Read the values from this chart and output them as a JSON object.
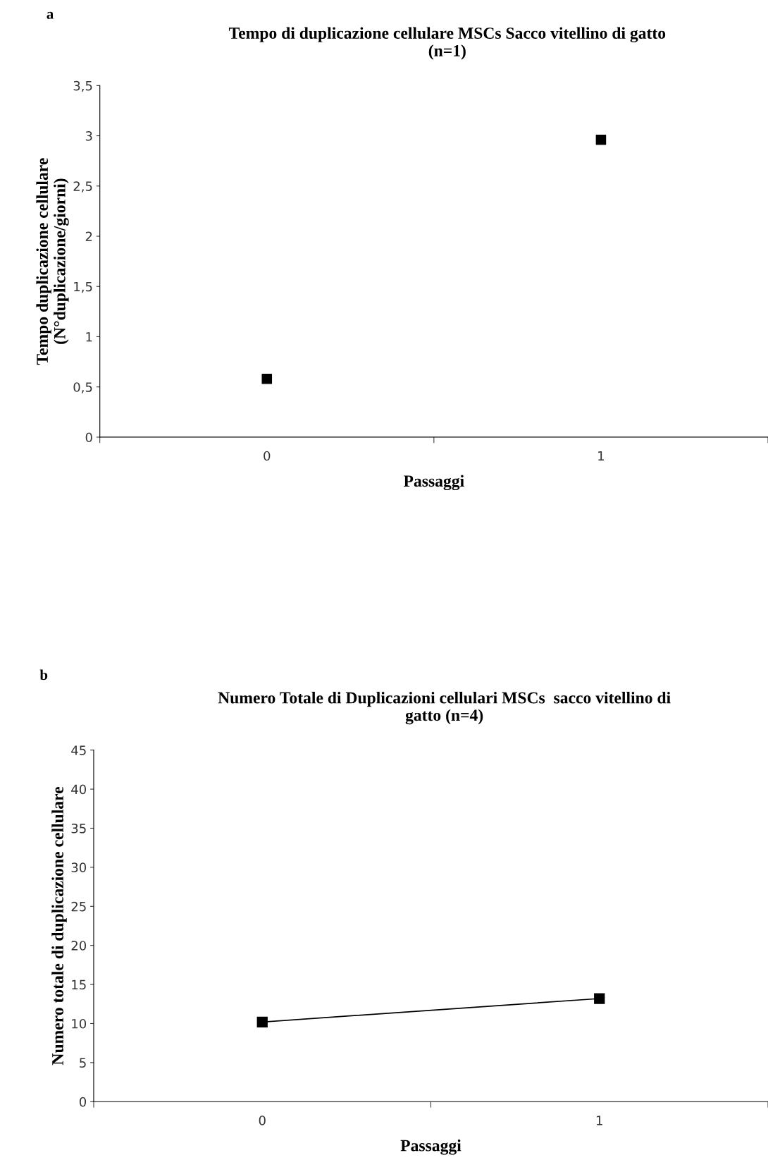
{
  "chart_data": [
    {
      "type": "scatter",
      "title": "Tempo di duplicazione cellulare MSCs Sacco vitellino di gatto\n(n=1)",
      "annotations": [
        "a"
      ],
      "xlabel": "Passaggi",
      "ylabel": "Tempo duplicazione cellulare\n(N°duplicazione/giorni)",
      "categories": [
        "0",
        "1"
      ],
      "series": [
        {
          "color": "#000000",
          "values": [
            0.58,
            2.96
          ]
        }
      ],
      "ylim": [
        0,
        3.5
      ],
      "yticks": [
        0,
        {
          "value": 0.5,
          "label": "0,5"
        },
        1,
        {
          "value": 1.5,
          "label": "1,5"
        },
        2,
        {
          "value": 2.5,
          "label": "2,5"
        },
        3,
        {
          "value": 3.5,
          "label": "3,5"
        }
      ],
      "marker": "square",
      "grid": false,
      "legend": false
    },
    {
      "type": "line",
      "title": "Numero Totale di Duplicazioni cellulari MSCs  sacco vitellino di\ngatto (n=4)",
      "annotations": [
        "b"
      ],
      "xlabel": "Passaggi",
      "ylabel": "Numero totale di duplicazione cellulare",
      "categories": [
        "0",
        "1"
      ],
      "series": [
        {
          "color": "#000000",
          "values": [
            10.2,
            13.2
          ]
        }
      ],
      "ylim": [
        0,
        45
      ],
      "yticks": [
        0,
        5,
        10,
        15,
        20,
        25,
        30,
        35,
        40,
        45
      ],
      "marker": "square",
      "line_style": "solid",
      "grid": false,
      "legend": false
    }
  ]
}
